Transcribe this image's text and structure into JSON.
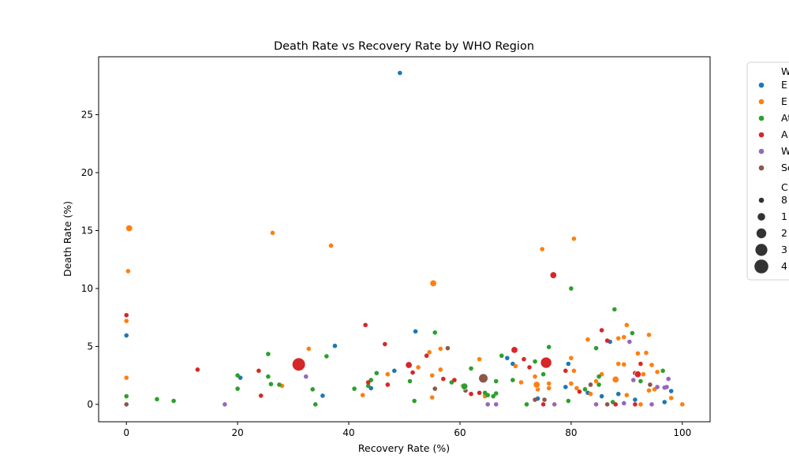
{
  "chart_data": {
    "type": "scatter",
    "title": "Death Rate vs Recovery Rate by WHO Region",
    "xlabel": "Recovery Rate (%)",
    "ylabel": "Death Rate (%)",
    "xlim": [
      -5,
      105
    ],
    "ylim": [
      -1.5,
      30
    ],
    "xticks": [
      0,
      20,
      40,
      60,
      80,
      100
    ],
    "yticks": [
      0,
      5,
      10,
      15,
      20,
      25
    ],
    "grid": false,
    "legend_position": "outside-right",
    "legend_hue_title": "W",
    "legend_size_title": "C",
    "series": [
      {
        "name": "E",
        "color": "#1f77b4",
        "points": [
          [
            49.2,
            28.6
          ],
          [
            0,
            5.95
          ],
          [
            37.5,
            5.05
          ],
          [
            52,
            6.3
          ],
          [
            20.5,
            2.3
          ],
          [
            44,
            1.4
          ],
          [
            35.3,
            0.75
          ],
          [
            48.2,
            2.9
          ],
          [
            68.5,
            4
          ],
          [
            69.5,
            3.5
          ],
          [
            79.5,
            3.5
          ],
          [
            79,
            1.5
          ],
          [
            88,
            2.15
          ],
          [
            87,
            5.4
          ],
          [
            83,
            1
          ],
          [
            85.5,
            0.7
          ],
          [
            88.5,
            0.9
          ],
          [
            91.5,
            0.4
          ],
          [
            96.8,
            0.2
          ],
          [
            98,
            1.15
          ],
          [
            74,
            0.5
          ]
        ]
      },
      {
        "name": "E",
        "color": "#ff7f0e",
        "points": [
          [
            0.5,
            15.2
          ],
          [
            0,
            7.2
          ],
          [
            0.3,
            11.5
          ],
          [
            0,
            2.3
          ],
          [
            26.3,
            14.8
          ],
          [
            36.8,
            13.7
          ],
          [
            55.2,
            10.5
          ],
          [
            74.8,
            13.4
          ],
          [
            80.5,
            14.3
          ],
          [
            32.8,
            4.8
          ],
          [
            28,
            1.6
          ],
          [
            42.5,
            0.8
          ],
          [
            47,
            2.6
          ],
          [
            52.5,
            3.2
          ],
          [
            54.5,
            4.5
          ],
          [
            56.5,
            4.8
          ],
          [
            55,
            2.5
          ],
          [
            56.5,
            3
          ],
          [
            55,
            0.6
          ],
          [
            63.5,
            3.9
          ],
          [
            64.5,
            0.7
          ],
          [
            70,
            3.3
          ],
          [
            71,
            1.9
          ],
          [
            73.5,
            2.4
          ],
          [
            74,
            1.3
          ],
          [
            73.8,
            1.7
          ],
          [
            75.5,
            3.8
          ],
          [
            76,
            1.8
          ],
          [
            76,
            1.4
          ],
          [
            80,
            4
          ],
          [
            80.5,
            2.9
          ],
          [
            80,
            1.8
          ],
          [
            81,
            1.4
          ],
          [
            83,
            5.6
          ],
          [
            84.5,
            2
          ],
          [
            85.5,
            2.6
          ],
          [
            88.5,
            5.7
          ],
          [
            89.5,
            5.8
          ],
          [
            90,
            6.85
          ],
          [
            88.5,
            3.5
          ],
          [
            89.5,
            3.45
          ],
          [
            92,
            4.4
          ],
          [
            93.5,
            4.45
          ],
          [
            94,
            6
          ],
          [
            93,
            2.6
          ],
          [
            94.5,
            3.4
          ],
          [
            95.5,
            2.8
          ],
          [
            94,
            1.2
          ],
          [
            95,
            1.3
          ],
          [
            98,
            0.55
          ],
          [
            100,
            0
          ],
          [
            92.5,
            0
          ],
          [
            90,
            0.8
          ],
          [
            83.5,
            0.9
          ]
        ]
      },
      {
        "name": "At",
        "color": "#2ca02c",
        "points": [
          [
            0,
            0.7
          ],
          [
            5.5,
            0.45
          ],
          [
            8.5,
            0.3
          ],
          [
            20,
            1.35
          ],
          [
            20,
            2.5
          ],
          [
            25.5,
            4.35
          ],
          [
            25.5,
            2.4
          ],
          [
            26,
            1.75
          ],
          [
            27.5,
            1.7
          ],
          [
            33.5,
            1.3
          ],
          [
            34,
            0
          ],
          [
            36,
            4.15
          ],
          [
            41,
            1.35
          ],
          [
            43.5,
            1.6
          ],
          [
            44,
            2.1
          ],
          [
            45,
            2.7
          ],
          [
            51,
            2
          ],
          [
            51.8,
            0.3
          ],
          [
            55.5,
            6.2
          ],
          [
            58.5,
            1.9
          ],
          [
            61,
            1.5
          ],
          [
            62,
            3.1
          ],
          [
            64.5,
            1
          ],
          [
            65,
            0.8
          ],
          [
            66,
            0.7
          ],
          [
            66.5,
            0.95
          ],
          [
            66.5,
            2
          ],
          [
            67.5,
            4.2
          ],
          [
            69.5,
            2.1
          ],
          [
            72,
            0
          ],
          [
            73.5,
            3.7
          ],
          [
            75,
            2.6
          ],
          [
            76,
            4.95
          ],
          [
            79.5,
            0.3
          ],
          [
            80,
            10
          ],
          [
            82.5,
            1.3
          ],
          [
            84.5,
            4.85
          ],
          [
            85,
            1.7
          ],
          [
            85,
            2.4
          ],
          [
            87.5,
            0.2
          ],
          [
            87.8,
            8.2
          ],
          [
            91,
            6.15
          ],
          [
            92.5,
            2
          ],
          [
            96.5,
            2.9
          ]
        ]
      },
      {
        "name": "A",
        "color": "#d62728",
        "points": [
          [
            0,
            7.7
          ],
          [
            12.8,
            3
          ],
          [
            23.8,
            2.9
          ],
          [
            24.2,
            0.75
          ],
          [
            43,
            6.85
          ],
          [
            43.5,
            1.9
          ],
          [
            46.5,
            5.2
          ],
          [
            47,
            1.7
          ],
          [
            51.5,
            2.75
          ],
          [
            54,
            4.2
          ],
          [
            57,
            2.2
          ],
          [
            59,
            2.1
          ],
          [
            60.5,
            1.6
          ],
          [
            62,
            0.9
          ],
          [
            63.5,
            1
          ],
          [
            70,
            4.75
          ],
          [
            71.5,
            3.9
          ],
          [
            72.5,
            3.2
          ],
          [
            75,
            0
          ],
          [
            76.8,
            11.15
          ],
          [
            79,
            2.9
          ],
          [
            81.5,
            1.1
          ],
          [
            85.5,
            6.4
          ],
          [
            86.5,
            5.5
          ],
          [
            88,
            0
          ],
          [
            91.5,
            2.7
          ],
          [
            92,
            2.6
          ],
          [
            92.5,
            3.5
          ],
          [
            91.5,
            0
          ]
        ]
      },
      {
        "name": "W",
        "color": "#9467bd",
        "points": [
          [
            17.7,
            0
          ],
          [
            32.3,
            2.4
          ],
          [
            65,
            0
          ],
          [
            66.5,
            0
          ],
          [
            77,
            0
          ],
          [
            84.5,
            0
          ],
          [
            89.5,
            0.1
          ],
          [
            90.5,
            5.4
          ],
          [
            91.2,
            2.1
          ],
          [
            94.5,
            0
          ],
          [
            95.5,
            1.5
          ],
          [
            96.8,
            1.45
          ],
          [
            97.2,
            1.5
          ],
          [
            97.5,
            2.2
          ]
        ]
      },
      {
        "name": "Se",
        "color": "#8c564b",
        "points": [
          [
            0,
            0
          ],
          [
            55.5,
            1.35
          ],
          [
            57.8,
            4.85
          ],
          [
            61,
            1.2
          ],
          [
            73.5,
            0.4
          ],
          [
            75.2,
            0.4
          ],
          [
            83.5,
            1.7
          ],
          [
            86.5,
            0
          ],
          [
            94.2,
            1.7
          ]
        ]
      }
    ],
    "size_legend_labels": [
      "8",
      "1",
      "2",
      "3",
      "4"
    ],
    "large_points": [
      {
        "x": 31,
        "y": 3.45,
        "series": "A",
        "size_level": 5
      },
      {
        "x": 75.5,
        "y": 3.6,
        "series": "A",
        "size_level": 4
      },
      {
        "x": 64.2,
        "y": 2.25,
        "series": "Se",
        "size_level": 3
      },
      {
        "x": 73.8,
        "y": 1.7,
        "series": "E",
        "size_level": 2
      },
      {
        "x": 60.8,
        "y": 1.55,
        "series": "At",
        "size_level": 2
      },
      {
        "x": 69.8,
        "y": 4.7,
        "series": "A",
        "size_level": 2
      },
      {
        "x": 50.8,
        "y": 3.4,
        "series": "A",
        "size_level": 2
      },
      {
        "x": 55.2,
        "y": 10.45,
        "series": "E",
        "size_level": 2
      },
      {
        "x": 88,
        "y": 2.15,
        "series": "E",
        "size_level": 2
      },
      {
        "x": 92,
        "y": 2.6,
        "series": "A",
        "size_level": 2
      },
      {
        "x": 76.8,
        "y": 11.15,
        "series": "A",
        "size_level": 2
      },
      {
        "x": 0.5,
        "y": 15.2,
        "series": "E",
        "size_level": 2
      }
    ]
  }
}
